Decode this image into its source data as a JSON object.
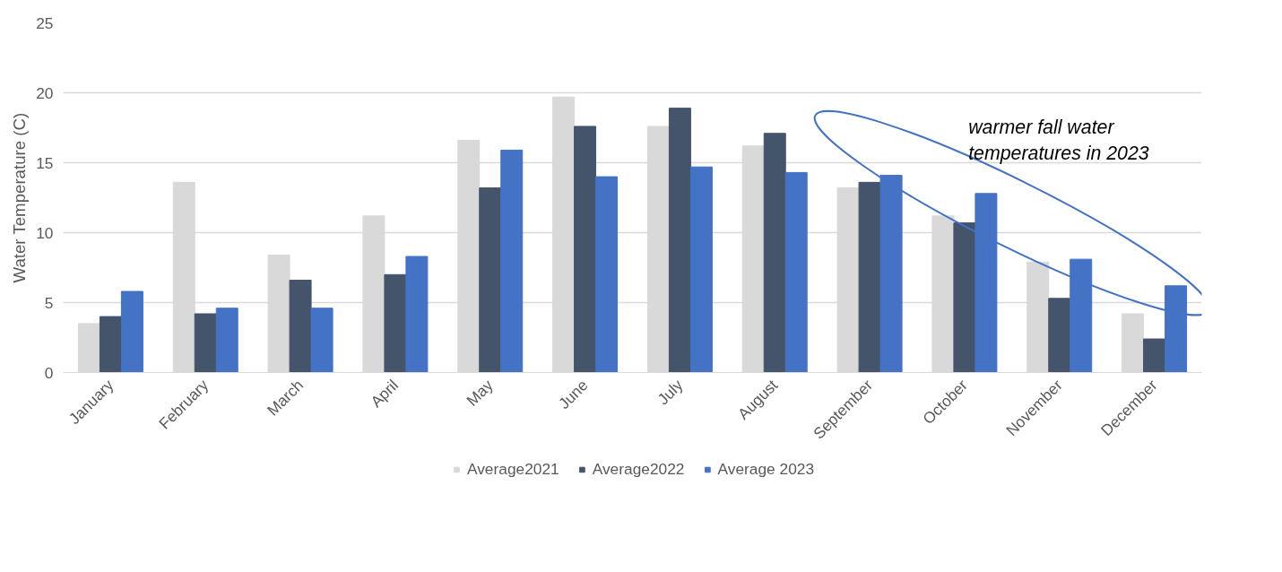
{
  "chart_data": {
    "type": "bar",
    "ylabel": "Water Temperature (C)",
    "categories": [
      "January",
      "February",
      "March",
      "April",
      "May",
      "June",
      "July",
      "August",
      "September",
      "October",
      "November",
      "December"
    ],
    "series": [
      {
        "name": "Average2021",
        "color": "#d9d9d9",
        "values": [
          3.5,
          13.6,
          8.4,
          11.2,
          16.6,
          19.7,
          17.6,
          16.2,
          13.2,
          11.2,
          7.9,
          4.2
        ]
      },
      {
        "name": "Average2022",
        "color": "#44546a",
        "values": [
          4.0,
          4.2,
          6.6,
          7.0,
          13.2,
          17.6,
          18.9,
          17.1,
          13.6,
          10.7,
          5.3,
          2.4
        ]
      },
      {
        "name": "Average 2023",
        "color": "#4472c4",
        "values": [
          5.8,
          4.6,
          4.6,
          8.3,
          15.9,
          14.0,
          14.7,
          14.3,
          14.1,
          12.8,
          8.1,
          6.2
        ]
      }
    ],
    "ylim": [
      0,
      25
    ],
    "yticks": [
      0,
      5,
      10,
      15,
      20,
      25
    ],
    "grid": "y",
    "legend": "bottom",
    "annotations": [
      "warmer fall water temperatures in 2023"
    ]
  }
}
